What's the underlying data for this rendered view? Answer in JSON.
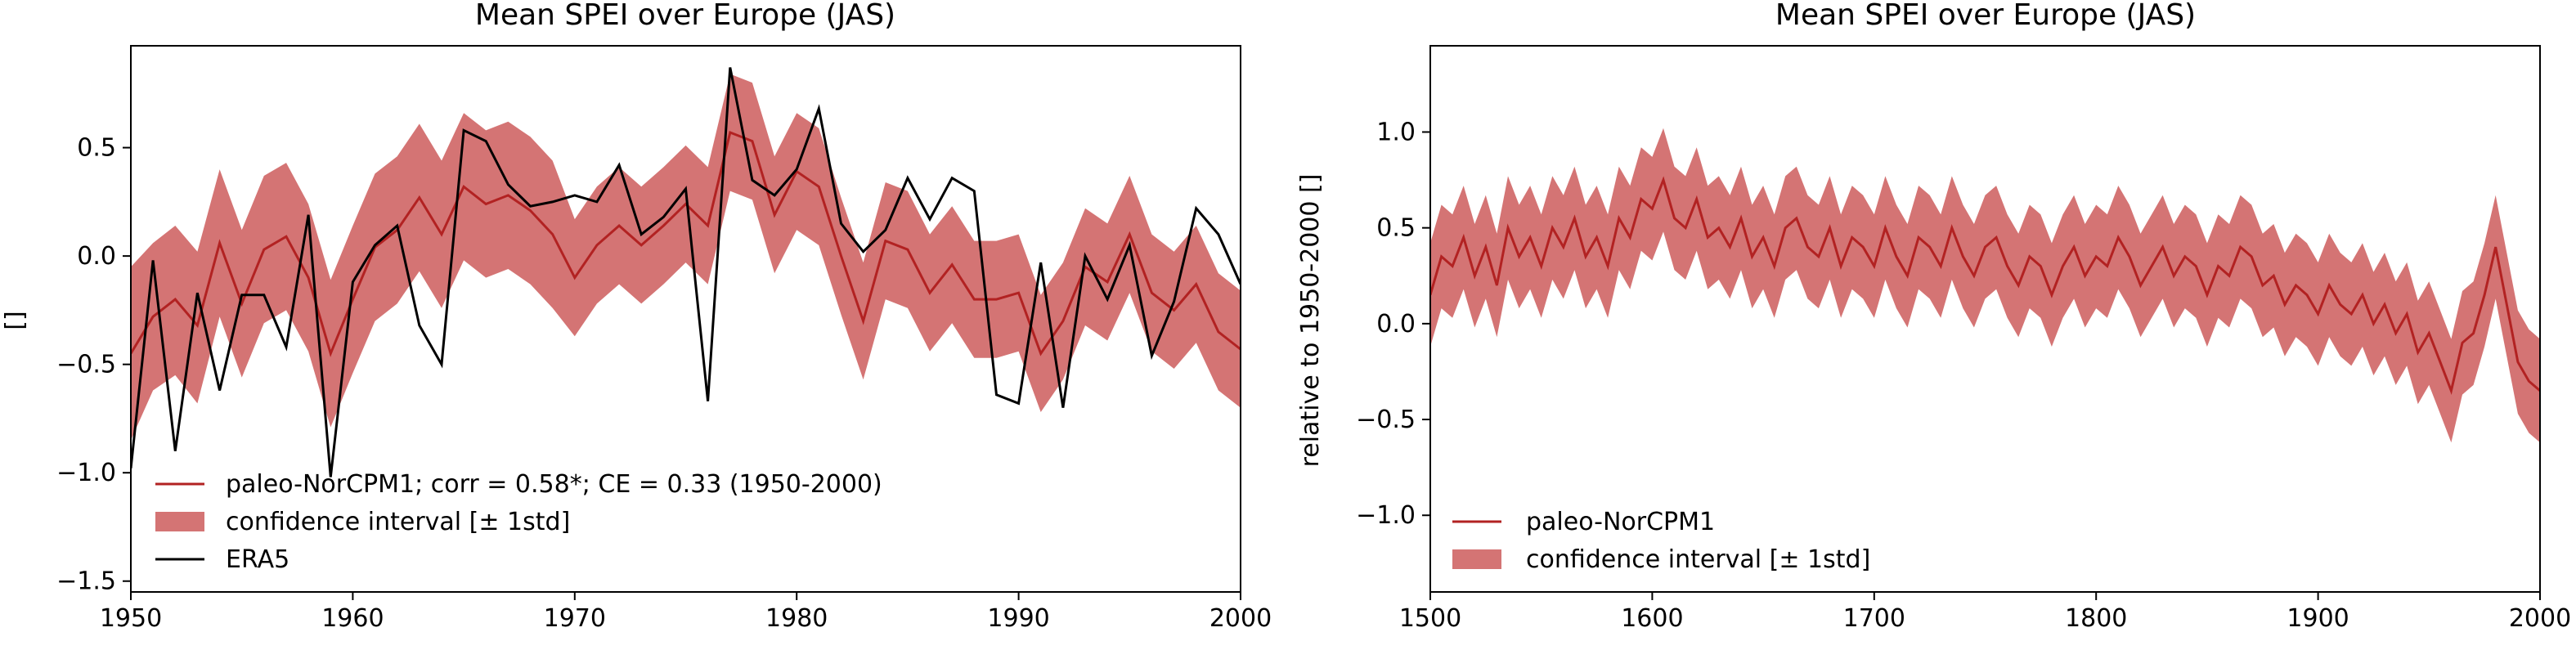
{
  "colors": {
    "model_line": "#b22222",
    "confidence_band": "#cd5c5c",
    "reanalysis_line": "#000000",
    "axes": "#000000",
    "background": "#ffffff"
  },
  "chart_data": [
    {
      "type": "line",
      "title": "Mean SPEI over Europe (JAS)",
      "xlabel": "",
      "ylabel": "[]",
      "xlim": [
        1950,
        2000
      ],
      "ylim": [
        -1.55,
        0.97
      ],
      "xticks": [
        1950,
        1960,
        1970,
        1980,
        1990,
        2000
      ],
      "xtick_labels": [
        "1950",
        "1960",
        "1970",
        "1980",
        "1990",
        "2000"
      ],
      "yticks": [
        -1.5,
        -1.0,
        -0.5,
        0.0,
        0.5
      ],
      "ytick_labels": [
        "−1.5",
        "−1.0",
        "−0.5",
        "0.0",
        "0.5"
      ],
      "legend_placement": "lower-left",
      "legend": [
        {
          "label": "paleo-NorCPM1; corr = 0.58*; CE = 0.33 (1950-2000)",
          "kind": "line",
          "color": "#b22222"
        },
        {
          "label": "confidence interval [± 1std]",
          "kind": "patch",
          "color": "#cd5c5c"
        },
        {
          "label": "ERA5",
          "kind": "line",
          "color": "#000000"
        }
      ],
      "x": [
        1950,
        1951,
        1952,
        1953,
        1954,
        1955,
        1956,
        1957,
        1958,
        1959,
        1960,
        1961,
        1962,
        1963,
        1964,
        1965,
        1966,
        1967,
        1968,
        1969,
        1970,
        1971,
        1972,
        1973,
        1974,
        1975,
        1976,
        1977,
        1978,
        1979,
        1980,
        1981,
        1982,
        1983,
        1984,
        1985,
        1986,
        1987,
        1988,
        1989,
        1990,
        1991,
        1992,
        1993,
        1994,
        1995,
        1996,
        1997,
        1998,
        1999,
        2000
      ],
      "series": [
        {
          "name": "paleo-NorCPM1; corr = 0.58*; CE = 0.33 (1950-2000)",
          "kind": "line",
          "values": [
            -0.45,
            -0.28,
            -0.2,
            -0.32,
            0.06,
            -0.22,
            0.03,
            0.09,
            -0.1,
            -0.45,
            -0.2,
            0.04,
            0.12,
            0.27,
            0.1,
            0.32,
            0.24,
            0.28,
            0.21,
            0.1,
            -0.1,
            0.05,
            0.14,
            0.05,
            0.14,
            0.24,
            0.14,
            0.57,
            0.53,
            0.19,
            0.39,
            0.32,
            0.0,
            -0.3,
            0.07,
            0.03,
            -0.17,
            -0.04,
            -0.2,
            -0.2,
            -0.17,
            -0.45,
            -0.3,
            -0.05,
            -0.12,
            0.1,
            -0.17,
            -0.25,
            -0.13,
            -0.35,
            -0.43
          ]
        },
        {
          "name": "confidence interval [± 1std]",
          "kind": "band",
          "lower": [
            -0.85,
            -0.62,
            -0.55,
            -0.68,
            -0.28,
            -0.56,
            -0.31,
            -0.25,
            -0.44,
            -0.79,
            -0.54,
            -0.3,
            -0.22,
            -0.07,
            -0.24,
            -0.02,
            -0.1,
            -0.06,
            -0.13,
            -0.24,
            -0.37,
            -0.22,
            -0.13,
            -0.22,
            -0.13,
            -0.03,
            -0.13,
            0.3,
            0.26,
            -0.08,
            0.12,
            0.05,
            -0.27,
            -0.57,
            -0.2,
            -0.24,
            -0.44,
            -0.31,
            -0.47,
            -0.47,
            -0.44,
            -0.72,
            -0.57,
            -0.32,
            -0.39,
            -0.17,
            -0.44,
            -0.52,
            -0.4,
            -0.62,
            -0.7
          ],
          "upper": [
            -0.05,
            0.06,
            0.14,
            0.02,
            0.4,
            0.12,
            0.37,
            0.43,
            0.24,
            -0.11,
            0.14,
            0.38,
            0.46,
            0.61,
            0.44,
            0.66,
            0.58,
            0.62,
            0.55,
            0.44,
            0.17,
            0.32,
            0.41,
            0.32,
            0.41,
            0.51,
            0.41,
            0.84,
            0.8,
            0.46,
            0.66,
            0.59,
            0.27,
            -0.03,
            0.34,
            0.3,
            0.1,
            0.23,
            0.07,
            0.07,
            0.1,
            -0.18,
            -0.03,
            0.22,
            0.15,
            0.37,
            0.1,
            0.02,
            0.14,
            -0.08,
            -0.16
          ]
        },
        {
          "name": "ERA5",
          "kind": "line",
          "values": [
            -0.98,
            -0.02,
            -0.9,
            -0.17,
            -0.62,
            -0.18,
            -0.18,
            -0.42,
            0.19,
            -1.02,
            -0.12,
            0.05,
            0.14,
            -0.32,
            -0.5,
            0.58,
            0.53,
            0.33,
            0.23,
            0.25,
            0.28,
            0.25,
            0.42,
            0.1,
            0.18,
            0.31,
            -0.67,
            0.87,
            0.35,
            0.28,
            0.4,
            0.68,
            0.15,
            0.02,
            0.12,
            0.36,
            0.17,
            0.36,
            0.3,
            -0.64,
            -0.68,
            -0.03,
            -0.7,
            0.0,
            -0.2,
            0.05,
            -0.46,
            -0.21,
            0.22,
            0.1,
            -0.13
          ]
        }
      ]
    },
    {
      "type": "line",
      "title": "Mean SPEI over Europe (JAS)",
      "xlabel": "",
      "ylabel": "relative to 1950-2000 []",
      "xlim": [
        1500,
        2000
      ],
      "ylim": [
        -1.4,
        1.45
      ],
      "xticks": [
        1500,
        1600,
        1700,
        1800,
        1900,
        2000
      ],
      "xtick_labels": [
        "1500",
        "1600",
        "1700",
        "1800",
        "1900",
        "2000"
      ],
      "yticks": [
        -1.0,
        -0.5,
        0.0,
        0.5,
        1.0
      ],
      "ytick_labels": [
        "−1.0",
        "−0.5",
        "0.0",
        "0.5",
        "1.0"
      ],
      "legend_placement": "lower-left",
      "legend": [
        {
          "label": "paleo-NorCPM1",
          "kind": "line",
          "color": "#b22222"
        },
        {
          "label": "confidence interval [± 1std]",
          "kind": "patch",
          "color": "#cd5c5c"
        }
      ],
      "x_start": 1500,
      "x_step": 5,
      "series": [
        {
          "name": "paleo-NorCPM1",
          "kind": "line",
          "values": [
            0.15,
            0.35,
            0.3,
            0.45,
            0.25,
            0.4,
            0.2,
            0.5,
            0.35,
            0.45,
            0.3,
            0.5,
            0.4,
            0.55,
            0.35,
            0.45,
            0.3,
            0.55,
            0.45,
            0.65,
            0.6,
            0.75,
            0.55,
            0.5,
            0.65,
            0.45,
            0.5,
            0.4,
            0.55,
            0.35,
            0.45,
            0.3,
            0.5,
            0.55,
            0.4,
            0.35,
            0.5,
            0.3,
            0.45,
            0.4,
            0.3,
            0.5,
            0.35,
            0.25,
            0.45,
            0.4,
            0.3,
            0.5,
            0.35,
            0.25,
            0.4,
            0.45,
            0.3,
            0.2,
            0.35,
            0.3,
            0.15,
            0.3,
            0.4,
            0.25,
            0.35,
            0.3,
            0.45,
            0.35,
            0.2,
            0.3,
            0.4,
            0.25,
            0.35,
            0.3,
            0.15,
            0.3,
            0.25,
            0.4,
            0.35,
            0.2,
            0.25,
            0.1,
            0.2,
            0.15,
            0.05,
            0.2,
            0.1,
            0.05,
            0.15,
            0.0,
            0.1,
            -0.05,
            0.05,
            -0.15,
            -0.05,
            -0.2,
            -0.35,
            -0.1,
            -0.05,
            0.15,
            0.4,
            0.1,
            -0.2,
            -0.3,
            -0.35
          ]
        },
        {
          "name": "confidence interval [± 1std]",
          "kind": "band",
          "halfwidth": 0.27
        }
      ]
    }
  ]
}
